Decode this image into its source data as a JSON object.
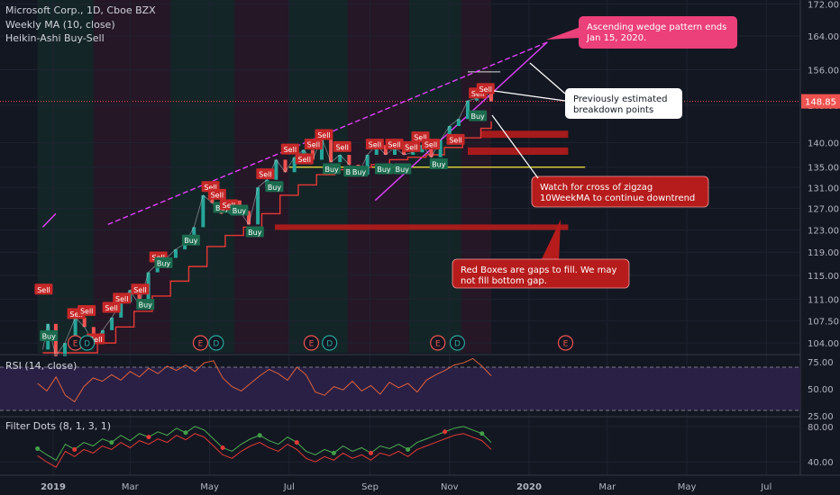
{
  "legend": {
    "symbol": "Microsoft Corp., 1D, Cboe BZX",
    "ma": "Weekly MA (10, close)",
    "ha": "Heikin-Ashi Buy-Sell"
  },
  "rsi_label": "RSI (14, close)",
  "filter_label": "Filter Dots (8, 1, 3, 1)",
  "colors": {
    "background": "#131722",
    "grid": "#1f2330",
    "wedge": "#e040fb",
    "ma": "#e53935",
    "price": "#cfd8dc",
    "up": "#26a69a",
    "down": "#ef5350",
    "yellow": "#ffeb3b",
    "gap_box": "#b71c1c",
    "rsi_line": "#e0613b",
    "rsi_band": "#2a2045",
    "filter_line": "#4caf50",
    "filter_red": "#e53935"
  },
  "chart_data": {
    "type": "line",
    "title": "Microsoft Corp., 1D, Cboe BZX",
    "x_labels": [
      "2019",
      "Mar",
      "May",
      "Jul",
      "Sep",
      "Nov",
      "2020",
      "Mar",
      "May",
      "Jul"
    ],
    "price_axis": {
      "ticks": [
        104.0,
        107.5,
        111.0,
        115.0,
        119.0,
        123.0,
        127.0,
        131.0,
        135.0,
        140.0,
        148.0,
        156.0,
        164.0,
        172.0
      ],
      "ylim": [
        102.5,
        173
      ],
      "last_price": "148.85",
      "log_scale": true
    },
    "price_series": {
      "name": "",
      "points": [
        [
          "2018-12-24",
          103.0
        ],
        [
          "2018-12-28",
          107.0
        ],
        [
          "2019-01-03",
          102.0
        ],
        [
          "2019-01-10",
          104.0
        ],
        [
          "2019-01-18",
          108.0
        ],
        [
          "2019-01-25",
          106.5
        ],
        [
          "2019-02-01",
          104.0
        ],
        [
          "2019-02-08",
          106.0
        ],
        [
          "2019-02-15",
          108.0
        ],
        [
          "2019-02-22",
          110.5
        ],
        [
          "2019-03-01",
          112.5
        ],
        [
          "2019-03-08",
          110.0
        ],
        [
          "2019-03-15",
          115.5
        ],
        [
          "2019-03-22",
          117.0
        ],
        [
          "2019-03-29",
          118.0
        ],
        [
          "2019-04-05",
          119.5
        ],
        [
          "2019-04-12",
          120.5
        ],
        [
          "2019-04-19",
          123.5
        ],
        [
          "2019-04-26",
          129.5
        ],
        [
          "2019-05-03",
          128.0
        ],
        [
          "2019-05-10",
          126.0
        ],
        [
          "2019-05-17",
          128.5
        ],
        [
          "2019-05-24",
          126.5
        ],
        [
          "2019-05-31",
          124.0
        ],
        [
          "2019-06-07",
          131.0
        ],
        [
          "2019-06-14",
          132.5
        ],
        [
          "2019-06-21",
          136.5
        ],
        [
          "2019-06-28",
          134.0
        ],
        [
          "2019-07-05",
          137.0
        ],
        [
          "2019-07-12",
          138.5
        ],
        [
          "2019-07-19",
          136.5
        ],
        [
          "2019-07-26",
          141.0
        ],
        [
          "2019-08-02",
          136.0
        ],
        [
          "2019-08-09",
          137.5
        ],
        [
          "2019-08-16",
          135.5
        ],
        [
          "2019-08-23",
          133.5
        ],
        [
          "2019-08-30",
          137.5
        ],
        [
          "2019-09-06",
          139.5
        ],
        [
          "2019-09-13",
          137.5
        ],
        [
          "2019-09-20",
          139.0
        ],
        [
          "2019-09-27",
          137.5
        ],
        [
          "2019-10-04",
          138.0
        ],
        [
          "2019-10-11",
          139.5
        ],
        [
          "2019-10-18",
          137.0
        ],
        [
          "2019-10-25",
          140.5
        ],
        [
          "2019-11-01",
          143.5
        ],
        [
          "2019-11-08",
          145.0
        ],
        [
          "2019-11-15",
          149.0
        ],
        [
          "2019-11-22",
          149.5
        ],
        [
          "2019-11-27",
          152.0
        ],
        [
          "2019-12-03",
          148.85
        ]
      ]
    },
    "ma_series": {
      "name": "",
      "points": [
        [
          "2018-12-24",
          102.5
        ],
        [
          "2019-01-21",
          102.5
        ],
        [
          "2019-02-04",
          104.0
        ],
        [
          "2019-02-18",
          106.5
        ],
        [
          "2019-03-04",
          109.0
        ],
        [
          "2019-03-18",
          111.5
        ],
        [
          "2019-04-01",
          114.0
        ],
        [
          "2019-04-15",
          116.5
        ],
        [
          "2019-04-29",
          120.0
        ],
        [
          "2019-05-13",
          122.0
        ],
        [
          "2019-05-27",
          123.5
        ],
        [
          "2019-06-10",
          126.0
        ],
        [
          "2019-06-24",
          129.5
        ],
        [
          "2019-07-08",
          131.5
        ],
        [
          "2019-07-22",
          133.5
        ],
        [
          "2019-08-05",
          134.5
        ],
        [
          "2019-08-19",
          135.0
        ],
        [
          "2019-09-02",
          135.5
        ],
        [
          "2019-09-16",
          136.5
        ],
        [
          "2019-09-30",
          137.0
        ],
        [
          "2019-10-14",
          137.5
        ],
        [
          "2019-10-28",
          139.0
        ],
        [
          "2019-11-11",
          141.0
        ],
        [
          "2019-11-25",
          143.0
        ],
        [
          "2019-12-03",
          144.5
        ]
      ]
    },
    "wedge_lines": [
      {
        "from": [
          "2018-12-24",
          123.5
        ],
        "to": [
          "2019-01-03",
          126.0
        ]
      },
      {
        "from": [
          "2019-02-12",
          124.0
        ],
        "to": [
          "2020-01-15",
          162.5
        ]
      },
      {
        "from": [
          "2019-09-05",
          128.5
        ],
        "to": [
          "2020-01-15",
          162.5
        ]
      }
    ],
    "markers": [
      {
        "date": "2019-01-18",
        "type": "E"
      },
      {
        "date": "2019-01-27",
        "type": "D"
      },
      {
        "date": "2019-04-24",
        "type": "E"
      },
      {
        "date": "2019-05-06",
        "type": "D"
      },
      {
        "date": "2019-07-18",
        "type": "E"
      },
      {
        "date": "2019-08-01",
        "type": "D"
      },
      {
        "date": "2019-10-23",
        "type": "E"
      },
      {
        "date": "2019-11-07",
        "type": "D"
      },
      {
        "date": "2020-01-29",
        "type": "E"
      }
    ],
    "gap_boxes": [
      {
        "from": "2019-11-25",
        "to": "2020-01-31",
        "low": 141.0,
        "high": 142.5
      },
      {
        "from": "2019-11-15",
        "to": "2020-01-31",
        "low": 137.5,
        "high": 139.0
      },
      {
        "from": "2019-06-20",
        "to": "2020-01-31",
        "low": 123.0,
        "high": 124.0
      }
    ],
    "support_line": {
      "from": "2019-07-01",
      "to": "2020-02-13",
      "value": 135.0
    },
    "resistance_tick": {
      "from": "2019-11-15",
      "to": "2019-12-10",
      "value": 155.5
    },
    "hma_labels": [
      {
        "date": "2018-12-24",
        "price": 112.5,
        "text": "Sell"
      },
      {
        "date": "2018-12-28",
        "price": 105.0,
        "text": "Buy"
      },
      {
        "date": "2019-01-18",
        "price": 108.5,
        "text": "Sell"
      },
      {
        "date": "2019-01-26",
        "price": 109.0,
        "text": "Sell"
      },
      {
        "date": "2019-02-02",
        "price": 104.5,
        "text": "Sell"
      },
      {
        "date": "2019-02-14",
        "price": 109.5,
        "text": "Sell"
      },
      {
        "date": "2019-02-22",
        "price": 111.0,
        "text": "Sell"
      },
      {
        "date": "2019-03-08",
        "price": 112.5,
        "text": "Sell"
      },
      {
        "date": "2019-03-12",
        "price": 110.0,
        "text": "Buy"
      },
      {
        "date": "2019-03-22",
        "price": 118.0,
        "text": "Sell"
      },
      {
        "date": "2019-03-26",
        "price": 117.0,
        "text": "Buy"
      },
      {
        "date": "2019-04-16",
        "price": 121.0,
        "text": "Buy"
      },
      {
        "date": "2019-05-01",
        "price": 131.0,
        "text": "Sell"
      },
      {
        "date": "2019-05-06",
        "price": 129.5,
        "text": "Sell"
      },
      {
        "date": "2019-05-10",
        "price": 127.0,
        "text": "Buy"
      },
      {
        "date": "2019-05-15",
        "price": 127.5,
        "text": "Sell"
      },
      {
        "date": "2019-05-23",
        "price": 126.5,
        "text": "Buy"
      },
      {
        "date": "2019-06-04",
        "price": 122.5,
        "text": "Buy"
      },
      {
        "date": "2019-06-12",
        "price": 133.5,
        "text": "Sell"
      },
      {
        "date": "2019-06-19",
        "price": 131.0,
        "text": "Buy"
      },
      {
        "date": "2019-07-01",
        "price": 138.5,
        "text": "Sell"
      },
      {
        "date": "2019-07-12",
        "price": 136.5,
        "text": "Sell"
      },
      {
        "date": "2019-07-19",
        "price": 139.5,
        "text": "Sell"
      },
      {
        "date": "2019-07-27",
        "price": 141.5,
        "text": "Sell"
      },
      {
        "date": "2019-08-02",
        "price": 134.5,
        "text": "Buy"
      },
      {
        "date": "2019-08-10",
        "price": 139.0,
        "text": "Sell"
      },
      {
        "date": "2019-08-18",
        "price": 134.0,
        "text": "Buy"
      },
      {
        "date": "2019-08-23",
        "price": 134.0,
        "text": "Buy"
      },
      {
        "date": "2019-09-04",
        "price": 139.5,
        "text": "Sell"
      },
      {
        "date": "2019-09-11",
        "price": 134.5,
        "text": "Buy"
      },
      {
        "date": "2019-09-19",
        "price": 139.5,
        "text": "Sell"
      },
      {
        "date": "2019-09-25",
        "price": 134.5,
        "text": "Buy"
      },
      {
        "date": "2019-10-02",
        "price": 139.0,
        "text": "Sell"
      },
      {
        "date": "2019-10-09",
        "price": 141.0,
        "text": "Sell"
      },
      {
        "date": "2019-10-17",
        "price": 139.5,
        "text": "Sell"
      },
      {
        "date": "2019-10-23",
        "price": 135.5,
        "text": "Buy"
      },
      {
        "date": "2019-11-05",
        "price": 140.5,
        "text": "Sell"
      },
      {
        "date": "2019-11-22",
        "price": 150.5,
        "text": "Sell"
      },
      {
        "date": "2019-11-28",
        "price": 151.5,
        "text": "Sell"
      },
      {
        "date": "2019-11-22",
        "price": 145.5,
        "text": "Buy"
      }
    ],
    "annotations": [
      {
        "id": "wedge_note",
        "text": "Ascending wedge pattern ends Jan 15, 2020.",
        "style": "pink"
      },
      {
        "id": "breakdown_note",
        "text": "Previously estimated breakdown points",
        "style": "white"
      },
      {
        "id": "zigzag_note",
        "text": "Watch for cross of zigzag 10WeekMA to continue downtrend",
        "style": "red"
      },
      {
        "id": "gap_note",
        "text": "Red Boxes are gaps to fill.  We may not fill bottom gap.",
        "style": "red"
      }
    ],
    "rsi": {
      "name": "RSI (14, close)",
      "ticks": [
        "75.00",
        "50.00",
        "25.00"
      ],
      "ylim": [
        25,
        80
      ],
      "bands": [
        30,
        70
      ],
      "values": [
        55,
        48,
        61,
        44,
        38,
        52,
        60,
        57,
        63,
        58,
        66,
        61,
        69,
        64,
        71,
        67,
        72,
        66,
        74,
        76,
        60,
        52,
        48,
        55,
        62,
        68,
        64,
        58,
        70,
        63,
        47,
        44,
        52,
        49,
        57,
        48,
        53,
        45,
        56,
        51,
        55,
        47,
        58,
        63,
        67,
        72,
        74,
        78,
        71,
        62
      ]
    },
    "filter": {
      "name": "Filter Dots (8, 1, 3, 1)",
      "ticks": [
        "80.00",
        "40.00"
      ],
      "ylim": [
        25,
        90
      ],
      "values": [
        55,
        48,
        42,
        60,
        54,
        62,
        58,
        66,
        62,
        70,
        64,
        72,
        68,
        74,
        70,
        78,
        73,
        80,
        76,
        66,
        56,
        52,
        60,
        66,
        70,
        64,
        60,
        68,
        62,
        52,
        48,
        54,
        50,
        58,
        52,
        56,
        50,
        58,
        55,
        60,
        54,
        62,
        66,
        70,
        74,
        78,
        80,
        76,
        72,
        62
      ]
    }
  }
}
